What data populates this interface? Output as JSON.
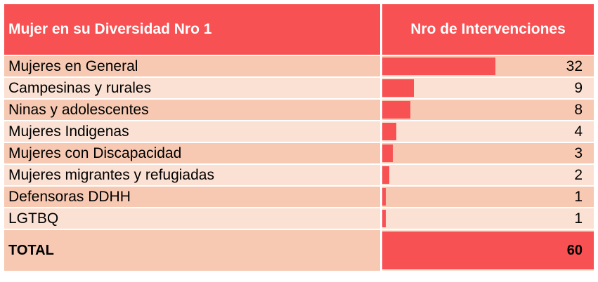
{
  "header": {
    "col1": "Mujer en su Diversidad Nro 1",
    "col2": "Nro de Intervenciones"
  },
  "rows": [
    {
      "label": "Mujeres en General",
      "value": 32
    },
    {
      "label": "Campesinas y rurales",
      "value": 9
    },
    {
      "label": "Ninas y adolescentes",
      "value": 8
    },
    {
      "label": "Mujeres Indigenas",
      "value": 4
    },
    {
      "label": "Mujeres con Discapacidad",
      "value": 3
    },
    {
      "label": "Mujeres migrantes y refugiadas",
      "value": 2
    },
    {
      "label": "Defensoras DDHH",
      "value": 1
    },
    {
      "label": "LGTBQ",
      "value": 1
    }
  ],
  "total": {
    "label": "TOTAL",
    "value": 60
  },
  "colors": {
    "header": "#f85153",
    "bar": "#f85153",
    "row_dark": "#f7c9b2",
    "row_light": "#fbe1d3"
  }
}
